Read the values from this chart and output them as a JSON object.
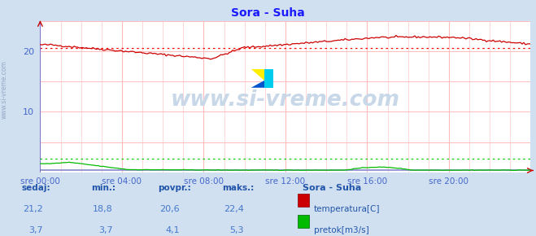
{
  "title": "Sora - Suha",
  "title_color": "#1a1aff",
  "bg_color": "#d0e0f0",
  "plot_bg_color": "#ffffff",
  "grid_color_v": "#ffbbbb",
  "grid_color_h": "#ffbbbb",
  "xlabel_color": "#4466cc",
  "ylim": [
    0,
    25
  ],
  "ytick_vals": [
    10,
    20
  ],
  "xlim": [
    0,
    288
  ],
  "xtick_labels": [
    "sre 00:00",
    "sre 04:00",
    "sre 08:00",
    "sre 12:00",
    "sre 16:00",
    "sre 20:00"
  ],
  "xtick_positions": [
    0,
    48,
    96,
    144,
    192,
    240
  ],
  "watermark": "www.si-vreme.com",
  "temp_avg": 20.6,
  "flow_avg_display": 1.2,
  "legend_title": "Sora - Suha",
  "legend_item_temp": "temperatura[C]",
  "legend_item_flow": "pretok[m3/s]",
  "stats_headers": [
    "sedaj:",
    "min.:",
    "povpr.:",
    "maks.:"
  ],
  "stats_temp": [
    "21,2",
    "18,8",
    "20,6",
    "22,4"
  ],
  "stats_flow": [
    "3,7",
    "3,7",
    "4,1",
    "5,3"
  ],
  "temp_color": "#cc0000",
  "flow_color": "#00bb00",
  "avg_temp_color": "#ff0000",
  "avg_flow_color": "#00cc00",
  "blue_line_color": "#6666cc",
  "side_label": "www.si-vreme.com"
}
